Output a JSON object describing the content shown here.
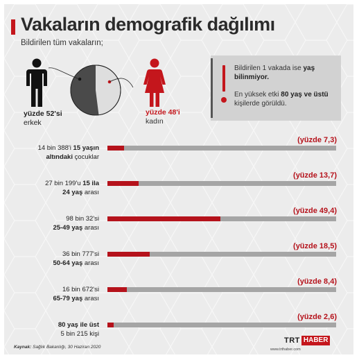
{
  "title": "Vakaların demografik dağılımı",
  "subtitle": "Bildirilen tüm vakaların;",
  "male": {
    "strong": "yüzde 52'si",
    "plain": "erkek",
    "share": 52,
    "color": "#222222",
    "icon": "male-person-icon"
  },
  "female": {
    "strong": "yüzde 48'i",
    "plain": "kadın",
    "share": 48,
    "color": "#c4161c",
    "icon": "female-person-icon"
  },
  "info": {
    "line1_pre": "Bildirilen 1 vakada ise ",
    "line1_bold": "yaş bilinmiyor.",
    "line2_pre": "En yüksek etki ",
    "line2_bold": "80 yaş ve üstü",
    "line2_post": " kişilerde görüldü.",
    "icon": "exclamation-icon"
  },
  "chart_data": {
    "type": "bar",
    "orientation": "horizontal",
    "xlim": [
      0,
      100
    ],
    "rows": [
      {
        "pre": "14 bin 388'i ",
        "bold1": "15 yaşın",
        "bold2": "altındaki",
        "post": " çocuklar",
        "value": 7.3,
        "label": "(yüzde 7,3)"
      },
      {
        "pre": "27 bin 199'u ",
        "bold1": "15 ila",
        "bold2": "24 yaş",
        "post": " arası",
        "value": 13.7,
        "label": "(yüzde 13,7)"
      },
      {
        "pre": "98 bin 32'si",
        "bold1": "",
        "bold2": "25-49 yaş",
        "post": " arası",
        "value": 49.4,
        "label": "(yüzde 49,4)"
      },
      {
        "pre": "36 bin 777'si",
        "bold1": "",
        "bold2": "50-64 yaş",
        "post": " arası",
        "value": 18.5,
        "label": "(yüzde 18,5)"
      },
      {
        "pre": "16 bin 672'si",
        "bold1": "",
        "bold2": "65-79 yaş",
        "post": " arası",
        "value": 8.4,
        "label": "(yüzde 8,4)"
      },
      {
        "pre": "",
        "bold1": "80 yaş ile üst",
        "bold2": "",
        "post": "5 bin 215 kişi",
        "value": 2.6,
        "label": "(yüzde 2,6)"
      }
    ],
    "bar_color": "#b5121b",
    "track_color": "#a5a5a5"
  },
  "source": {
    "label": "Kaynak:",
    "text": " Sağlık Bakanlığı, 30 Haziran 2020"
  },
  "logo": {
    "trt": "TRT",
    "haber": "HABER",
    "url": "www.trthaber.com"
  }
}
